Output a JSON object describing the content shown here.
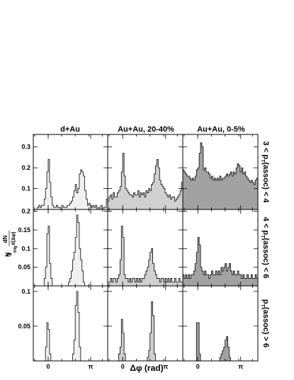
{
  "chart_data": {
    "type": "histogram-grid",
    "column_titles": [
      "d+Au",
      "Au+Au, 20-40%",
      "Au+Au, 0-5%"
    ],
    "row_titles": [
      "3 < p_T(assoc) < 4",
      "4 < p_T(assoc) < 6",
      "p_T(assoc) > 6"
    ],
    "row_title_parts": [
      {
        "pre": "3 < p",
        "sub": "T",
        "post": "(assoc) < 4"
      },
      {
        "pre": "4 < p",
        "sub": "T",
        "post": "(assoc) < 6"
      },
      {
        "pre": "p",
        "sub": "T",
        "post": "(assoc) > 6"
      }
    ],
    "xlabel": "Δφ (rad)",
    "xlim": [
      -1.1,
      4.4
    ],
    "x_tick_labels": [
      {
        "value": 0,
        "label": "0"
      },
      {
        "value": 3.1416,
        "label": "π"
      }
    ],
    "ylabel": {
      "prefix": "1",
      "trig": "trig",
      "numerator": "dN",
      "denominator": "d(Δφ)"
    },
    "rows": [
      {
        "ylim": [
          0,
          0.36
        ],
        "yticks": [
          0.1,
          0.2,
          0.3
        ],
        "ytick_labels": [
          "0.1",
          "0.2",
          "0.3"
        ]
      },
      {
        "ylim": [
          0,
          0.205
        ],
        "yticks": [
          0.05,
          0.1,
          0.15,
          0.2
        ],
        "ytick_labels": [
          "0.05",
          "0.1",
          "0.15",
          "0.2"
        ]
      },
      {
        "ylim": [
          0,
          0.108
        ],
        "yticks": [
          0.05,
          0.1
        ],
        "ytick_labels": [
          "0.05",
          "0.1"
        ]
      }
    ],
    "fill_colors": [
      "#f0f0f0",
      "#d0d0d0",
      "#a2a2a2"
    ],
    "bins": {
      "start": -1.1,
      "width": 0.1,
      "count": 55
    },
    "series": [
      {
        "name": "d+Au | 3 < pT(assoc) < 4",
        "values": [
          0,
          0,
          0,
          0.01,
          0.02,
          0.01,
          0.02,
          0.02,
          0.05,
          0.1,
          0.18,
          0.24,
          0.13,
          0.06,
          0.02,
          0.01,
          0.01,
          0.02,
          0.01,
          0.01,
          0,
          0.02,
          0.01,
          0.01,
          0.01,
          0.02,
          0.02,
          0.03,
          0.04,
          0.06,
          0.09,
          0.12,
          0.08,
          0.1,
          0.17,
          0.19,
          0.18,
          0.16,
          0.09,
          0.05,
          0.02,
          0.03,
          0.02,
          0.01,
          0.02,
          0.01,
          0.02,
          0,
          0.01,
          0,
          0.02,
          0,
          0.01,
          0.01,
          0.05
        ]
      },
      {
        "name": "Au+Au, 20-40% | 3 < pT(assoc) < 4",
        "values": [
          0.04,
          0.06,
          0.07,
          0.05,
          0.08,
          0.06,
          0.06,
          0.08,
          0.09,
          0.11,
          0.18,
          0.27,
          0.16,
          0.1,
          0.09,
          0.08,
          0.07,
          0.07,
          0.06,
          0.08,
          0.07,
          0.07,
          0.09,
          0.06,
          0.08,
          0.07,
          0.08,
          0.06,
          0.09,
          0.08,
          0.1,
          0.09,
          0.12,
          0.13,
          0.17,
          0.21,
          0.24,
          0.2,
          0.14,
          0.12,
          0.11,
          0.1,
          0.08,
          0.07,
          0.06,
          0.07,
          0.05,
          0.06,
          0.06,
          0.04,
          0.05,
          0.06,
          0.07,
          0.09,
          0.13
        ]
      },
      {
        "name": "Au+Au, 0-5% | 3 < pT(assoc) < 4",
        "values": [
          0.19,
          0.18,
          0.17,
          0.16,
          0.16,
          0.15,
          0.14,
          0.15,
          0.14,
          0.16,
          0.19,
          0.2,
          0.27,
          0.32,
          0.3,
          0.19,
          0.2,
          0.18,
          0.18,
          0.17,
          0.15,
          0.16,
          0.14,
          0.15,
          0.14,
          0.15,
          0.14,
          0.16,
          0.14,
          0.15,
          0.15,
          0.16,
          0.17,
          0.16,
          0.17,
          0.18,
          0.16,
          0.18,
          0.17,
          0.2,
          0.22,
          0.21,
          0.18,
          0.2,
          0.17,
          0.18,
          0.16,
          0.15,
          0.14,
          0.13,
          0.14,
          0.13,
          0.12,
          0.14,
          0.15
        ]
      },
      {
        "name": "d+Au | 4 < pT(assoc) < 6",
        "values": [
          0,
          0,
          0,
          0,
          0,
          0,
          0,
          0,
          0.02,
          0.05,
          0.14,
          0.16,
          0.06,
          0.02,
          0,
          0,
          0,
          0,
          0,
          0,
          0,
          0,
          0,
          0,
          0,
          0,
          0.01,
          0.02,
          0.04,
          0.07,
          0.09,
          0.13,
          0.19,
          0.17,
          0.1,
          0.07,
          0.04,
          0.01,
          0,
          0,
          0,
          0,
          0,
          0,
          0,
          0,
          0,
          0,
          0,
          0,
          0,
          0,
          0,
          0,
          0
        ]
      },
      {
        "name": "Au+Au, 20-40% | 4 < pT(assoc) < 6",
        "values": [
          0.01,
          0.01,
          0.02,
          0.01,
          0.02,
          0.02,
          0.01,
          0.02,
          0.03,
          0.07,
          0.16,
          0.13,
          0.03,
          0.02,
          0.02,
          0.01,
          0.02,
          0.01,
          0.02,
          0.02,
          0.01,
          0.02,
          0.01,
          0.02,
          0.01,
          0.02,
          0.02,
          0.03,
          0.04,
          0.05,
          0.07,
          0.09,
          0.1,
          0.06,
          0.04,
          0.03,
          0.02,
          0.02,
          0.01,
          0.02,
          0.02,
          0.01,
          0.02,
          0.01,
          0.02,
          0.01,
          0.02,
          0.01,
          0.01,
          0.02,
          0.01,
          0.01,
          0.02,
          0.01,
          0.01
        ]
      },
      {
        "name": "Au+Au, 0-5% | 4 < pT(assoc) < 6",
        "values": [
          0.03,
          0.02,
          0.03,
          0.02,
          0.03,
          0.02,
          0.03,
          0.03,
          0.04,
          0.06,
          0.09,
          0.13,
          0.11,
          0.05,
          0.04,
          0.03,
          0.04,
          0.03,
          0.03,
          0.02,
          0.03,
          0.04,
          0.03,
          0.03,
          0.04,
          0.03,
          0.04,
          0.03,
          0.05,
          0.04,
          0.05,
          0.06,
          0.04,
          0.05,
          0.06,
          0.04,
          0.03,
          0.04,
          0.03,
          0.03,
          0.04,
          0.03,
          0.03,
          0.02,
          0.03,
          0.02,
          0.02,
          0.03,
          0.02,
          0.02,
          0.03,
          0.02,
          0.02,
          0.03,
          0.02
        ]
      },
      {
        "name": "d+Au | pT(assoc) > 6",
        "values": [
          0,
          0,
          0,
          0,
          0,
          0,
          0,
          0,
          0,
          0.02,
          0.055,
          0.045,
          0.01,
          0,
          0,
          0,
          0,
          0,
          0,
          0,
          0,
          0,
          0,
          0,
          0,
          0,
          0,
          0,
          0,
          0.01,
          0.03,
          0.08,
          0.1,
          0.07,
          0.02,
          0,
          0,
          0,
          0,
          0,
          0,
          0,
          0,
          0,
          0,
          0,
          0,
          0,
          0,
          0,
          0,
          0,
          0,
          0,
          0
        ]
      },
      {
        "name": "Au+Au, 20-40% | pT(assoc) > 6",
        "values": [
          0,
          0,
          0,
          0,
          0,
          0,
          0,
          0,
          0.01,
          0.02,
          0.06,
          0.04,
          0.01,
          0,
          0,
          0,
          0,
          0,
          0,
          0,
          0,
          0,
          0,
          0,
          0,
          0,
          0,
          0,
          0,
          0.005,
          0.015,
          0.04,
          0.085,
          0.065,
          0.01,
          0,
          0,
          0,
          0,
          0,
          0,
          0,
          0,
          0,
          0,
          0,
          0,
          0,
          0,
          0,
          0,
          0,
          0,
          0,
          0
        ]
      },
      {
        "name": "Au+Au, 0-5% | pT(assoc) > 6",
        "values": [
          0,
          0,
          0,
          0,
          0,
          0,
          0,
          0,
          0,
          0,
          0.055,
          0.055,
          0.01,
          0,
          0,
          0,
          0,
          0,
          0,
          0,
          0,
          0,
          0,
          0,
          0,
          0,
          0,
          0.005,
          0.01,
          0.015,
          0.02,
          0.03,
          0.035,
          0.02,
          0.005,
          0,
          0,
          0,
          0,
          0,
          0,
          0,
          0,
          0,
          0,
          0,
          0,
          0,
          0,
          0,
          0,
          0,
          0,
          0,
          0
        ]
      }
    ]
  }
}
